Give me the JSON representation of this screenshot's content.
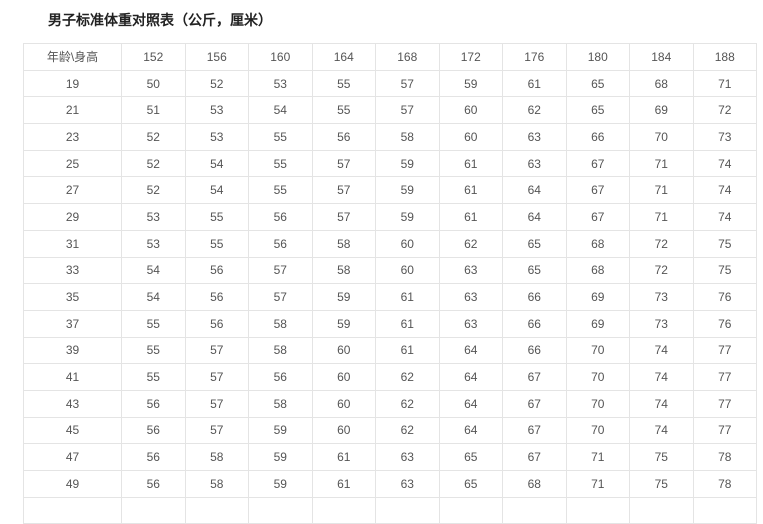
{
  "title": "男子标准体重对照表（公斤，厘米）",
  "table": {
    "corner_label": "年龄\\身高",
    "heights": [
      "152",
      "156",
      "160",
      "164",
      "168",
      "172",
      "176",
      "180",
      "184",
      "188"
    ],
    "rows": [
      {
        "age": "19",
        "values": [
          "50",
          "52",
          "53",
          "55",
          "57",
          "59",
          "61",
          "65",
          "68",
          "71"
        ]
      },
      {
        "age": "21",
        "values": [
          "51",
          "53",
          "54",
          "55",
          "57",
          "60",
          "62",
          "65",
          "69",
          "72"
        ]
      },
      {
        "age": "23",
        "values": [
          "52",
          "53",
          "55",
          "56",
          "58",
          "60",
          "63",
          "66",
          "70",
          "73"
        ]
      },
      {
        "age": "25",
        "values": [
          "52",
          "54",
          "55",
          "57",
          "59",
          "61",
          "63",
          "67",
          "71",
          "74"
        ]
      },
      {
        "age": "27",
        "values": [
          "52",
          "54",
          "55",
          "57",
          "59",
          "61",
          "64",
          "67",
          "71",
          "74"
        ]
      },
      {
        "age": "29",
        "values": [
          "53",
          "55",
          "56",
          "57",
          "59",
          "61",
          "64",
          "67",
          "71",
          "74"
        ]
      },
      {
        "age": "31",
        "values": [
          "53",
          "55",
          "56",
          "58",
          "60",
          "62",
          "65",
          "68",
          "72",
          "75"
        ]
      },
      {
        "age": "33",
        "values": [
          "54",
          "56",
          "57",
          "58",
          "60",
          "63",
          "65",
          "68",
          "72",
          "75"
        ]
      },
      {
        "age": "35",
        "values": [
          "54",
          "56",
          "57",
          "59",
          "61",
          "63",
          "66",
          "69",
          "73",
          "76"
        ]
      },
      {
        "age": "37",
        "values": [
          "55",
          "56",
          "58",
          "59",
          "61",
          "63",
          "66",
          "69",
          "73",
          "76"
        ]
      },
      {
        "age": "39",
        "values": [
          "55",
          "57",
          "58",
          "60",
          "61",
          "64",
          "66",
          "70",
          "74",
          "77"
        ]
      },
      {
        "age": "41",
        "values": [
          "55",
          "57",
          "56",
          "60",
          "62",
          "64",
          "67",
          "70",
          "74",
          "77"
        ]
      },
      {
        "age": "43",
        "values": [
          "56",
          "57",
          "58",
          "60",
          "62",
          "64",
          "67",
          "70",
          "74",
          "77"
        ]
      },
      {
        "age": "45",
        "values": [
          "56",
          "57",
          "59",
          "60",
          "62",
          "64",
          "67",
          "70",
          "74",
          "77"
        ]
      },
      {
        "age": "47",
        "values": [
          "56",
          "58",
          "59",
          "61",
          "63",
          "65",
          "67",
          "71",
          "75",
          "78"
        ]
      },
      {
        "age": "49",
        "values": [
          "56",
          "58",
          "59",
          "61",
          "63",
          "65",
          "68",
          "71",
          "75",
          "78"
        ]
      }
    ]
  }
}
